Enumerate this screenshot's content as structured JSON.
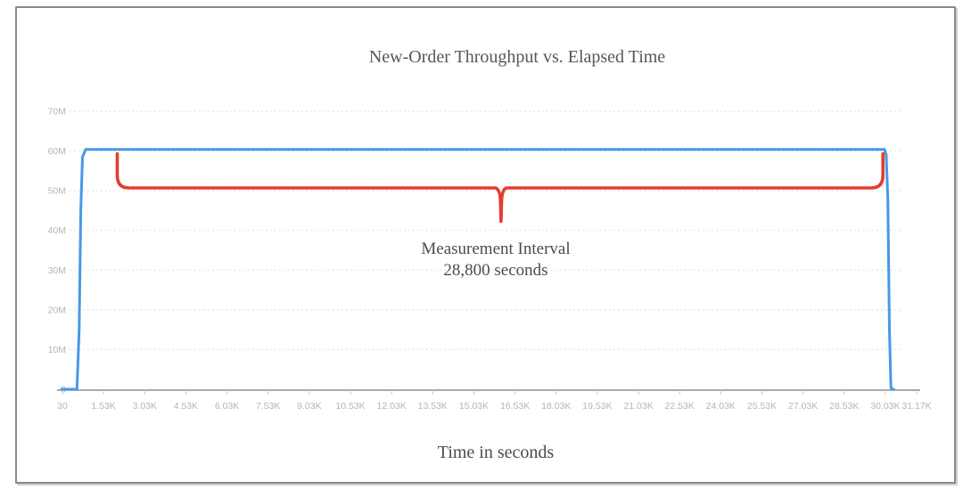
{
  "window": {
    "background": "#ffffff",
    "frame_border_color": "#8a8a8a"
  },
  "chart_data": {
    "type": "line",
    "title": "New-Order Throughput vs. Elapsed Time",
    "xlabel": "Time in seconds",
    "ylabel": "",
    "legend": "none",
    "grid": "horizontal-dotted",
    "xlim": [
      30,
      31170
    ],
    "ylim": [
      0,
      70000000
    ],
    "x_ticks": [
      {
        "label": "30",
        "value": 30
      },
      {
        "label": "1.53K",
        "value": 1530
      },
      {
        "label": "3.03K",
        "value": 3030
      },
      {
        "label": "4.53K",
        "value": 4530
      },
      {
        "label": "6.03K",
        "value": 6030
      },
      {
        "label": "7.53K",
        "value": 7530
      },
      {
        "label": "9.03K",
        "value": 9030
      },
      {
        "label": "10.53K",
        "value": 10530
      },
      {
        "label": "12.03K",
        "value": 12030
      },
      {
        "label": "13.53K",
        "value": 13530
      },
      {
        "label": "15.03K",
        "value": 15030
      },
      {
        "label": "16.53K",
        "value": 16530
      },
      {
        "label": "18.03K",
        "value": 18030
      },
      {
        "label": "19.53K",
        "value": 19530
      },
      {
        "label": "21.03K",
        "value": 21030
      },
      {
        "label": "22.53K",
        "value": 22530
      },
      {
        "label": "24.03K",
        "value": 24030
      },
      {
        "label": "25.53K",
        "value": 25530
      },
      {
        "label": "27.03K",
        "value": 27030
      },
      {
        "label": "28.53K",
        "value": 28530
      },
      {
        "label": "30.03K",
        "value": 30030
      },
      {
        "label": "31.17K",
        "value": 31170
      }
    ],
    "y_ticks": [
      {
        "label": "0",
        "value": 0
      },
      {
        "label": "10M",
        "value": 10000000
      },
      {
        "label": "20M",
        "value": 20000000
      },
      {
        "label": "30M",
        "value": 30000000
      },
      {
        "label": "40M",
        "value": 40000000
      },
      {
        "label": "50M",
        "value": 50000000
      },
      {
        "label": "60M",
        "value": 60000000
      },
      {
        "label": "70M",
        "value": 70000000
      }
    ],
    "colors": {
      "grid": "#dedede",
      "axis": "#8f8f8f",
      "tick_mark": "#c9c9c9",
      "tick_label": "#b5b5b5"
    },
    "series": [
      {
        "name": "new-order-throughput",
        "color": "#4798e8",
        "points": [
          [
            0,
            0
          ],
          [
            300,
            0
          ],
          [
            560,
            0
          ],
          [
            640,
            15000000
          ],
          [
            700,
            45000000
          ],
          [
            760,
            58500000
          ],
          [
            880,
            60400000
          ],
          [
            30000,
            60400000
          ],
          [
            30060,
            59000000
          ],
          [
            30120,
            48000000
          ],
          [
            30180,
            15000000
          ],
          [
            30230,
            1000000
          ],
          [
            30250,
            0
          ],
          [
            30330,
            0
          ]
        ]
      }
    ],
    "annotation": {
      "line1": "Measurement Interval",
      "line2": "28,800 seconds",
      "color": "#e43d2d",
      "text_color": "#4c4c4c",
      "brace": {
        "start_t": 2030,
        "end_t": 29940,
        "tip_t": 16020,
        "top_value": 59300000,
        "bar_value": 50700000,
        "tip_value": 42300000
      }
    }
  }
}
